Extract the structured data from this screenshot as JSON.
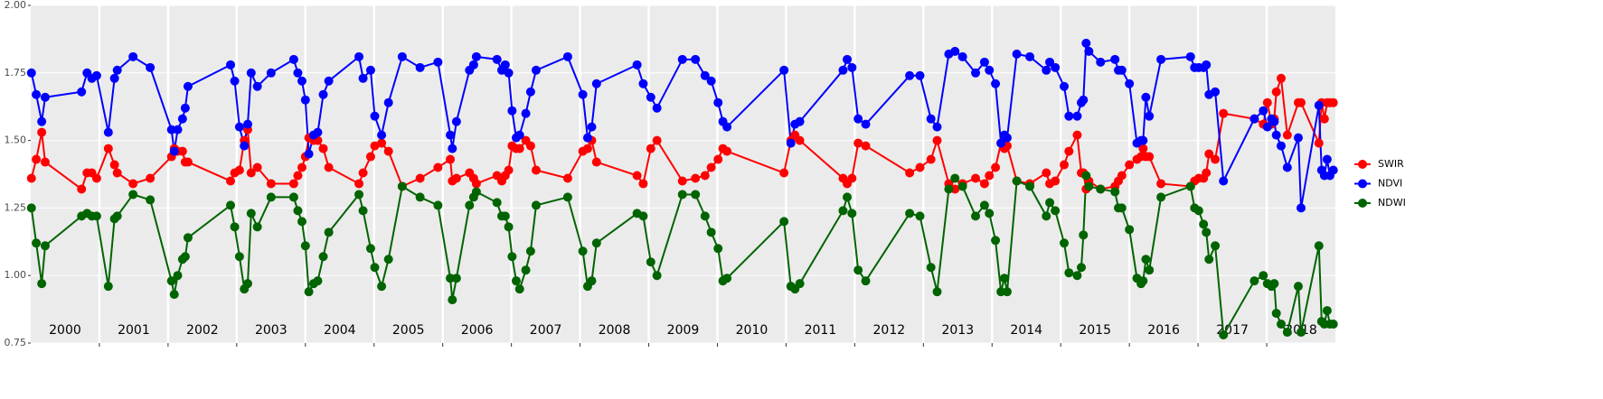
{
  "chart_data": {
    "type": "line",
    "x": [
      2000.01,
      2000.08,
      2000.16,
      2000.21,
      2000.74,
      2000.82,
      2000.89,
      2000.96,
      2001.13,
      2001.22,
      2001.26,
      2001.49,
      2001.74,
      2002.05,
      2002.09,
      2002.14,
      2002.21,
      2002.25,
      2002.29,
      2002.91,
      2002.97,
      2003.04,
      2003.11,
      2003.16,
      2003.21,
      2003.3,
      2003.5,
      2003.83,
      2003.89,
      2003.95,
      2004.0,
      2004.05,
      2004.12,
      2004.18,
      2004.26,
      2004.34,
      2004.78,
      2004.84,
      2004.95,
      2005.01,
      2005.11,
      2005.21,
      2005.41,
      2005.67,
      2005.93,
      2006.11,
      2006.14,
      2006.2,
      2006.39,
      2006.45,
      2006.49,
      2006.79,
      2006.86,
      2006.91,
      2006.96,
      2007.01,
      2007.07,
      2007.12,
      2007.21,
      2007.28,
      2007.36,
      2007.82,
      2008.04,
      2008.11,
      2008.17,
      2008.24,
      2008.83,
      2008.92,
      2009.03,
      2009.12,
      2009.49,
      2009.68,
      2009.82,
      2009.91,
      2010.01,
      2010.08,
      2010.14,
      2010.97,
      2011.07,
      2011.13,
      2011.2,
      2011.83,
      2011.89,
      2011.96,
      2012.05,
      2012.16,
      2012.8,
      2012.95,
      2013.11,
      2013.2,
      2013.37,
      2013.46,
      2013.57,
      2013.76,
      2013.89,
      2013.96,
      2014.05,
      2014.13,
      2014.18,
      2014.22,
      2014.36,
      2014.55,
      2014.79,
      2014.84,
      2014.92,
      2015.05,
      2015.12,
      2015.24,
      2015.3,
      2015.33,
      2015.37,
      2015.41,
      2015.58,
      2015.79,
      2015.84,
      2015.89,
      2016.0,
      2016.11,
      2016.17,
      2016.2,
      2016.24,
      2016.29,
      2016.46,
      2016.89,
      2016.95,
      2017.01,
      2017.08,
      2017.12,
      2017.16,
      2017.25,
      2017.37,
      2017.82,
      2017.95,
      2018.01,
      2018.07,
      2018.11,
      2018.14,
      2018.21,
      2018.3,
      2018.46,
      2018.5,
      2018.76,
      2018.8,
      2018.84,
      2018.88,
      2018.92,
      2018.97
    ],
    "series": [
      {
        "name": "SWIR",
        "color": "#ff0000",
        "values": [
          1.36,
          1.43,
          1.53,
          1.42,
          1.32,
          1.38,
          1.38,
          1.36,
          1.47,
          1.41,
          1.38,
          1.34,
          1.36,
          1.44,
          1.47,
          1.46,
          1.46,
          1.42,
          1.42,
          1.35,
          1.38,
          1.39,
          1.5,
          1.54,
          1.38,
          1.4,
          1.34,
          1.34,
          1.37,
          1.4,
          1.44,
          1.51,
          1.5,
          1.5,
          1.47,
          1.4,
          1.34,
          1.38,
          1.44,
          1.48,
          1.49,
          1.46,
          1.33,
          1.36,
          1.4,
          1.43,
          1.35,
          1.36,
          1.38,
          1.36,
          1.34,
          1.37,
          1.35,
          1.37,
          1.39,
          1.48,
          1.47,
          1.47,
          1.5,
          1.48,
          1.39,
          1.36,
          1.46,
          1.47,
          1.5,
          1.42,
          1.37,
          1.34,
          1.47,
          1.5,
          1.35,
          1.36,
          1.37,
          1.4,
          1.43,
          1.47,
          1.46,
          1.38,
          1.5,
          1.52,
          1.5,
          1.36,
          1.34,
          1.36,
          1.49,
          1.48,
          1.38,
          1.4,
          1.43,
          1.5,
          1.34,
          1.32,
          1.34,
          1.36,
          1.34,
          1.37,
          1.4,
          1.49,
          1.47,
          1.48,
          1.35,
          1.34,
          1.38,
          1.34,
          1.35,
          1.41,
          1.46,
          1.52,
          1.38,
          1.38,
          1.32,
          1.35,
          1.32,
          1.33,
          1.35,
          1.37,
          1.41,
          1.43,
          1.44,
          1.47,
          1.44,
          1.44,
          1.34,
          1.33,
          1.35,
          1.36,
          1.36,
          1.38,
          1.45,
          1.43,
          1.6,
          1.58,
          1.56,
          1.64,
          1.56,
          1.58,
          1.68,
          1.73,
          1.52,
          1.64,
          1.64,
          1.49,
          1.64,
          1.58,
          1.64,
          1.64,
          1.64
        ]
      },
      {
        "name": "NDVI",
        "color": "#0000ff",
        "values": [
          1.75,
          1.67,
          1.57,
          1.66,
          1.68,
          1.75,
          1.73,
          1.74,
          1.53,
          1.73,
          1.76,
          1.81,
          1.77,
          1.54,
          1.46,
          1.54,
          1.58,
          1.62,
          1.7,
          1.78,
          1.72,
          1.55,
          1.48,
          1.56,
          1.75,
          1.7,
          1.75,
          1.8,
          1.75,
          1.72,
          1.65,
          1.45,
          1.52,
          1.53,
          1.67,
          1.72,
          1.81,
          1.73,
          1.76,
          1.59,
          1.52,
          1.64,
          1.81,
          1.77,
          1.79,
          1.52,
          1.47,
          1.57,
          1.76,
          1.78,
          1.81,
          1.8,
          1.76,
          1.78,
          1.75,
          1.61,
          1.51,
          1.52,
          1.6,
          1.68,
          1.76,
          1.81,
          1.67,
          1.51,
          1.55,
          1.71,
          1.78,
          1.71,
          1.66,
          1.62,
          1.8,
          1.8,
          1.74,
          1.72,
          1.64,
          1.57,
          1.55,
          1.76,
          1.49,
          1.56,
          1.57,
          1.76,
          1.8,
          1.77,
          1.58,
          1.56,
          1.74,
          1.74,
          1.58,
          1.55,
          1.82,
          1.83,
          1.81,
          1.75,
          1.79,
          1.76,
          1.71,
          1.49,
          1.52,
          1.51,
          1.82,
          1.81,
          1.76,
          1.79,
          1.77,
          1.7,
          1.59,
          1.59,
          1.64,
          1.65,
          1.86,
          1.83,
          1.79,
          1.8,
          1.76,
          1.76,
          1.71,
          1.49,
          1.5,
          1.5,
          1.66,
          1.59,
          1.8,
          1.81,
          1.77,
          1.77,
          1.77,
          1.78,
          1.67,
          1.68,
          1.35,
          1.58,
          1.61,
          1.55,
          1.58,
          1.57,
          1.52,
          1.48,
          1.4,
          1.51,
          1.25,
          1.63,
          1.39,
          1.37,
          1.43,
          1.37,
          1.39
        ]
      },
      {
        "name": "NDWI",
        "color": "#006400",
        "values": [
          1.25,
          1.12,
          0.97,
          1.11,
          1.22,
          1.23,
          1.22,
          1.22,
          0.96,
          1.21,
          1.22,
          1.3,
          1.28,
          0.98,
          0.93,
          1.0,
          1.06,
          1.07,
          1.14,
          1.26,
          1.18,
          1.07,
          0.95,
          0.97,
          1.23,
          1.18,
          1.29,
          1.29,
          1.24,
          1.2,
          1.11,
          0.94,
          0.97,
          0.98,
          1.07,
          1.16,
          1.3,
          1.24,
          1.1,
          1.03,
          0.96,
          1.06,
          1.33,
          1.29,
          1.26,
          0.99,
          0.91,
          0.99,
          1.26,
          1.29,
          1.31,
          1.27,
          1.22,
          1.22,
          1.18,
          1.07,
          0.98,
          0.95,
          1.02,
          1.09,
          1.26,
          1.29,
          1.09,
          0.96,
          0.98,
          1.12,
          1.23,
          1.22,
          1.05,
          1.0,
          1.3,
          1.3,
          1.22,
          1.16,
          1.1,
          0.98,
          0.99,
          1.2,
          0.96,
          0.95,
          0.97,
          1.24,
          1.29,
          1.23,
          1.02,
          0.98,
          1.23,
          1.22,
          1.03,
          0.94,
          1.32,
          1.36,
          1.33,
          1.22,
          1.26,
          1.23,
          1.13,
          0.94,
          0.99,
          0.94,
          1.35,
          1.33,
          1.22,
          1.27,
          1.24,
          1.12,
          1.01,
          1.0,
          1.03,
          1.15,
          1.37,
          1.33,
          1.32,
          1.31,
          1.25,
          1.25,
          1.17,
          0.99,
          0.97,
          0.98,
          1.06,
          1.02,
          1.29,
          1.33,
          1.25,
          1.24,
          1.19,
          1.16,
          1.06,
          1.11,
          0.78,
          0.98,
          1.0,
          0.97,
          0.96,
          0.97,
          0.86,
          0.82,
          0.79,
          0.96,
          0.79,
          1.11,
          0.83,
          0.82,
          0.87,
          0.82,
          0.82
        ]
      }
    ],
    "xlim": [
      2000,
      2019
    ],
    "xticks": [
      2001,
      2002,
      2003,
      2004,
      2005,
      2006,
      2007,
      2008,
      2009,
      2010,
      2011,
      2012,
      2013,
      2014,
      2015,
      2016,
      2017,
      2018
    ],
    "year_labels": [
      {
        "value": 2000.5,
        "label": "2000"
      },
      {
        "value": 2001.5,
        "label": "2001"
      },
      {
        "value": 2002.5,
        "label": "2002"
      },
      {
        "value": 2003.5,
        "label": "2003"
      },
      {
        "value": 2004.5,
        "label": "2004"
      },
      {
        "value": 2005.5,
        "label": "2005"
      },
      {
        "value": 2006.5,
        "label": "2006"
      },
      {
        "value": 2007.5,
        "label": "2007"
      },
      {
        "value": 2008.5,
        "label": "2008"
      },
      {
        "value": 2009.5,
        "label": "2009"
      },
      {
        "value": 2010.5,
        "label": "2010"
      },
      {
        "value": 2011.5,
        "label": "2011"
      },
      {
        "value": 2012.5,
        "label": "2012"
      },
      {
        "value": 2013.5,
        "label": "2013"
      },
      {
        "value": 2014.5,
        "label": "2014"
      },
      {
        "value": 2015.5,
        "label": "2015"
      },
      {
        "value": 2016.5,
        "label": "2016"
      },
      {
        "value": 2017.5,
        "label": "2017"
      },
      {
        "value": 2018.5,
        "label": "2018"
      }
    ],
    "ylim": [
      0.75,
      2.0
    ],
    "yticks": [
      {
        "value": 0.75,
        "label": "0.75"
      },
      {
        "value": 1.0,
        "label": "1.00"
      },
      {
        "value": 1.25,
        "label": "1.25"
      },
      {
        "value": 1.5,
        "label": "1.50"
      },
      {
        "value": 1.75,
        "label": "1.75"
      },
      {
        "value": 2.0,
        "label": "2.00"
      }
    ],
    "grid": true,
    "legend": "right"
  }
}
